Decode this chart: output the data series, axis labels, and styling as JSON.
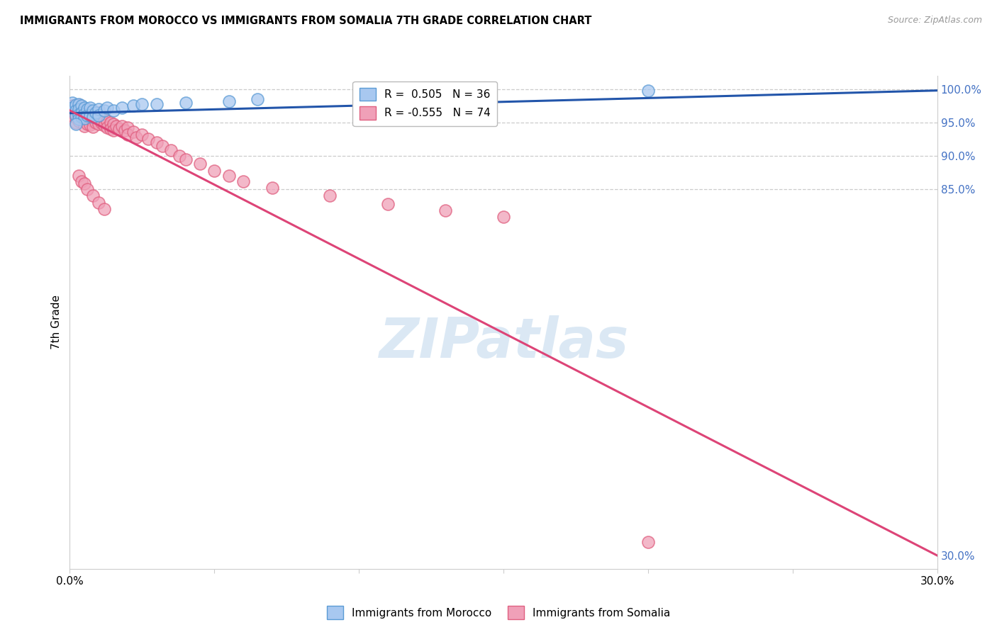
{
  "title": "IMMIGRANTS FROM MOROCCO VS IMMIGRANTS FROM SOMALIA 7TH GRADE CORRELATION CHART",
  "source": "Source: ZipAtlas.com",
  "ylabel": "7th Grade",
  "xlim": [
    0.0,
    0.3
  ],
  "ylim": [
    0.28,
    1.02
  ],
  "xtick_positions": [
    0.0,
    0.05,
    0.1,
    0.15,
    0.2,
    0.25,
    0.3
  ],
  "xtick_labels": [
    "0.0%",
    "",
    "",
    "",
    "",
    "",
    "30.0%"
  ],
  "right_ytick_positions": [
    1.0,
    0.95,
    0.9,
    0.85,
    0.3
  ],
  "right_ytick_labels": [
    "100.0%",
    "95.0%",
    "90.0%",
    "85.0%",
    "30.0%"
  ],
  "morocco_color": "#A8C8F0",
  "somalia_color": "#F0A0B8",
  "morocco_edge": "#5B9BD5",
  "somalia_edge": "#E06080",
  "trend_blue": "#2255AA",
  "trend_pink": "#DD4477",
  "R_morocco": 0.505,
  "N_morocco": 36,
  "R_somalia": -0.555,
  "N_somalia": 74,
  "watermark": "ZIPatlas",
  "morocco_x": [
    0.001,
    0.001,
    0.002,
    0.002,
    0.002,
    0.003,
    0.003,
    0.003,
    0.003,
    0.004,
    0.004,
    0.004,
    0.005,
    0.005,
    0.005,
    0.006,
    0.006,
    0.007,
    0.007,
    0.008,
    0.008,
    0.009,
    0.01,
    0.01,
    0.012,
    0.013,
    0.015,
    0.018,
    0.022,
    0.025,
    0.03,
    0.04,
    0.055,
    0.065,
    0.2,
    0.002
  ],
  "morocco_y": [
    0.98,
    0.972,
    0.976,
    0.968,
    0.96,
    0.978,
    0.97,
    0.962,
    0.955,
    0.975,
    0.965,
    0.958,
    0.972,
    0.963,
    0.956,
    0.97,
    0.96,
    0.972,
    0.961,
    0.968,
    0.958,
    0.965,
    0.97,
    0.96,
    0.968,
    0.972,
    0.968,
    0.972,
    0.975,
    0.978,
    0.978,
    0.98,
    0.982,
    0.985,
    0.998,
    0.948
  ],
  "somalia_x": [
    0.001,
    0.001,
    0.001,
    0.002,
    0.002,
    0.002,
    0.002,
    0.003,
    0.003,
    0.003,
    0.003,
    0.004,
    0.004,
    0.004,
    0.005,
    0.005,
    0.005,
    0.005,
    0.006,
    0.006,
    0.006,
    0.007,
    0.007,
    0.007,
    0.008,
    0.008,
    0.008,
    0.009,
    0.009,
    0.01,
    0.01,
    0.01,
    0.011,
    0.011,
    0.012,
    0.012,
    0.013,
    0.013,
    0.014,
    0.014,
    0.015,
    0.015,
    0.016,
    0.017,
    0.018,
    0.019,
    0.02,
    0.02,
    0.022,
    0.023,
    0.025,
    0.027,
    0.03,
    0.032,
    0.035,
    0.038,
    0.04,
    0.045,
    0.05,
    0.055,
    0.06,
    0.07,
    0.09,
    0.11,
    0.13,
    0.15,
    0.003,
    0.004,
    0.005,
    0.006,
    0.008,
    0.01,
    0.012,
    0.2
  ],
  "somalia_y": [
    0.975,
    0.968,
    0.96,
    0.972,
    0.965,
    0.958,
    0.95,
    0.976,
    0.968,
    0.96,
    0.952,
    0.97,
    0.962,
    0.954,
    0.968,
    0.96,
    0.952,
    0.945,
    0.965,
    0.957,
    0.948,
    0.962,
    0.955,
    0.947,
    0.96,
    0.952,
    0.943,
    0.958,
    0.95,
    0.965,
    0.955,
    0.948,
    0.96,
    0.95,
    0.956,
    0.946,
    0.952,
    0.942,
    0.95,
    0.94,
    0.948,
    0.938,
    0.944,
    0.94,
    0.945,
    0.938,
    0.942,
    0.932,
    0.936,
    0.928,
    0.932,
    0.925,
    0.92,
    0.915,
    0.908,
    0.9,
    0.895,
    0.888,
    0.878,
    0.87,
    0.862,
    0.852,
    0.84,
    0.828,
    0.818,
    0.808,
    0.87,
    0.862,
    0.858,
    0.85,
    0.84,
    0.83,
    0.82,
    0.32
  ]
}
